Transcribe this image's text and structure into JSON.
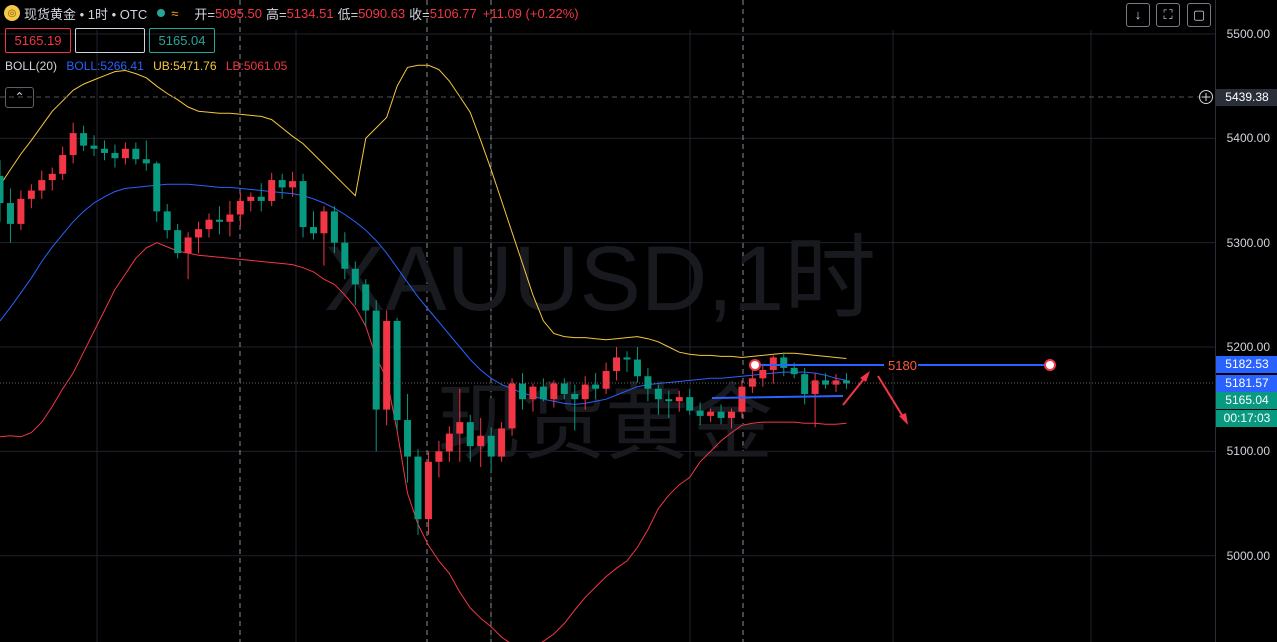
{
  "header": {
    "symbol": "现货黄金 • 1时 • OTC",
    "open_label": "开=",
    "open": "5095.50",
    "high_label": "高=",
    "high": "5134.51",
    "low_label": "低=",
    "low": "5090.63",
    "close_label": "收=",
    "close": "5106.77",
    "change": "+11.09 (+0.22%)",
    "wave_glyph": "≈"
  },
  "quote": {
    "bid": "5165.19",
    "mid": "",
    "ask": "5165.04"
  },
  "indicator": {
    "name": "BOLL(20)",
    "boll": "BOLL:5266.41",
    "ub": "UB:5471.76",
    "lb": "LB:5061.05"
  },
  "watermark": {
    "line1": "XAUUSD,1时",
    "line2": "现货黄金"
  },
  "toolbar": {
    "collapse_glyph": "⌃",
    "download_glyph": "↓",
    "fullscreen_glyph": "⛶",
    "screenshot_glyph": "▢"
  },
  "drawing": {
    "level_label": "5180"
  },
  "price_axis": {
    "crosshair_label": "5439.38",
    "labels": [
      {
        "text": "5182.53",
        "value": 5182.53,
        "color": "#2962ff"
      },
      {
        "text": "5181.57",
        "value": 5181.57,
        "color": "#2962ff"
      },
      {
        "text": "5165.04",
        "value": 5165.04,
        "color": "#089981"
      },
      {
        "text": "00:17:03",
        "value": 5145.5,
        "color": "#089981"
      }
    ]
  },
  "colors": {
    "up": "#f23645",
    "down": "#089981",
    "boll": "#2962ff",
    "ub": "#f5c83b",
    "lb": "#f23645"
  },
  "chart_data": {
    "type": "candlestick",
    "title": "",
    "y_ticks": [
      5000,
      5100,
      5200,
      5300,
      5400,
      5500
    ],
    "y_tick_labels": [
      "5000.00",
      "5100.00",
      "5200.00",
      "5300.00",
      "5400.00",
      "5500.00"
    ],
    "ylim": [
      4920,
      5520
    ],
    "grid": true,
    "candles": [
      [
        5364,
        5379,
        5320,
        5338
      ],
      [
        5338,
        5352,
        5300,
        5318
      ],
      [
        5318,
        5350,
        5312,
        5342
      ],
      [
        5342,
        5356,
        5333,
        5350
      ],
      [
        5350,
        5369,
        5342,
        5360
      ],
      [
        5360,
        5372,
        5350,
        5366
      ],
      [
        5366,
        5392,
        5360,
        5384
      ],
      [
        5384,
        5415,
        5376,
        5405
      ],
      [
        5405,
        5412,
        5388,
        5393
      ],
      [
        5393,
        5403,
        5383,
        5390
      ],
      [
        5390,
        5398,
        5379,
        5386
      ],
      [
        5386,
        5394,
        5372,
        5381
      ],
      [
        5381,
        5396,
        5375,
        5390
      ],
      [
        5390,
        5396,
        5375,
        5380
      ],
      [
        5380,
        5398,
        5369,
        5376
      ],
      [
        5376,
        5378,
        5320,
        5330
      ],
      [
        5330,
        5337,
        5304,
        5312
      ],
      [
        5312,
        5318,
        5285,
        5290
      ],
      [
        5290,
        5310,
        5265,
        5305
      ],
      [
        5305,
        5320,
        5290,
        5313
      ],
      [
        5313,
        5328,
        5305,
        5322
      ],
      [
        5322,
        5335,
        5308,
        5320
      ],
      [
        5320,
        5340,
        5306,
        5327
      ],
      [
        5327,
        5348,
        5315,
        5340
      ],
      [
        5340,
        5348,
        5330,
        5344
      ],
      [
        5344,
        5357,
        5330,
        5340
      ],
      [
        5340,
        5367,
        5335,
        5360
      ],
      [
        5360,
        5366,
        5342,
        5353
      ],
      [
        5353,
        5368,
        5344,
        5359
      ],
      [
        5359,
        5366,
        5305,
        5315
      ],
      [
        5315,
        5330,
        5303,
        5309
      ],
      [
        5309,
        5335,
        5278,
        5330
      ],
      [
        5330,
        5335,
        5290,
        5300
      ],
      [
        5300,
        5310,
        5265,
        5275
      ],
      [
        5275,
        5282,
        5240,
        5260
      ],
      [
        5260,
        5265,
        5220,
        5235
      ],
      [
        5235,
        5245,
        5100,
        5140
      ],
      [
        5140,
        5235,
        5125,
        5225
      ],
      [
        5225,
        5228,
        5120,
        5130
      ],
      [
        5130,
        5155,
        5070,
        5095
      ],
      [
        5095,
        5102,
        5020,
        5035
      ],
      [
        5035,
        5100,
        5020,
        5090
      ],
      [
        5090,
        5110,
        5075,
        5100
      ],
      [
        5100,
        5124,
        5090,
        5117
      ],
      [
        5117,
        5160,
        5090,
        5128
      ],
      [
        5128,
        5135,
        5090,
        5105
      ],
      [
        5105,
        5132,
        5085,
        5115
      ],
      [
        5115,
        5123,
        5080,
        5095
      ],
      [
        5095,
        5128,
        5090,
        5122
      ],
      [
        5122,
        5170,
        5115,
        5165
      ],
      [
        5165,
        5175,
        5140,
        5150
      ],
      [
        5150,
        5165,
        5138,
        5162
      ],
      [
        5162,
        5170,
        5148,
        5150
      ],
      [
        5150,
        5168,
        5142,
        5165
      ],
      [
        5165,
        5170,
        5150,
        5155
      ],
      [
        5155,
        5164,
        5120,
        5150
      ],
      [
        5150,
        5172,
        5140,
        5164
      ],
      [
        5164,
        5175,
        5150,
        5160
      ],
      [
        5160,
        5185,
        5155,
        5177
      ],
      [
        5177,
        5200,
        5168,
        5190
      ],
      [
        5190,
        5196,
        5176,
        5188
      ],
      [
        5188,
        5200,
        5166,
        5172
      ],
      [
        5172,
        5180,
        5148,
        5160
      ],
      [
        5160,
        5164,
        5135,
        5150
      ],
      [
        5150,
        5158,
        5132,
        5148
      ],
      [
        5148,
        5158,
        5138,
        5152
      ],
      [
        5152,
        5160,
        5135,
        5139
      ],
      [
        5139,
        5147,
        5125,
        5134
      ],
      [
        5134,
        5141,
        5128,
        5138
      ],
      [
        5138,
        5145,
        5126,
        5132
      ],
      [
        5132,
        5141,
        5122,
        5138
      ],
      [
        5138,
        5168,
        5132,
        5162
      ],
      [
        5162,
        5178,
        5156,
        5170
      ],
      [
        5170,
        5184,
        5162,
        5178
      ],
      [
        5178,
        5192,
        5165,
        5190
      ],
      [
        5190,
        5195,
        5172,
        5180
      ],
      [
        5180,
        5185,
        5170,
        5174
      ],
      [
        5174,
        5180,
        5145,
        5155
      ],
      [
        5155,
        5175,
        5123,
        5168
      ],
      [
        5168,
        5175,
        5160,
        5164
      ],
      [
        5164,
        5174,
        5157,
        5168
      ],
      [
        5168,
        5175,
        5160,
        5165
      ]
    ],
    "series": [
      {
        "name": "BOLL",
        "values": [
          5225,
          5238,
          5252,
          5266,
          5282,
          5296,
          5308,
          5320,
          5330,
          5338,
          5344,
          5349,
          5352,
          5353,
          5354,
          5355,
          5356,
          5356,
          5356,
          5355,
          5354,
          5353,
          5353,
          5352,
          5351,
          5350,
          5349,
          5348,
          5347,
          5345,
          5342,
          5338,
          5333,
          5327,
          5320,
          5312,
          5302,
          5290,
          5276,
          5262,
          5248,
          5236,
          5224,
          5212,
          5200,
          5188,
          5178,
          5170,
          5164,
          5160,
          5156,
          5153,
          5150,
          5148,
          5146,
          5145,
          5146,
          5148,
          5150,
          5154,
          5158,
          5162,
          5164,
          5165,
          5166,
          5167,
          5168,
          5169,
          5170,
          5170,
          5171,
          5172,
          5173,
          5174,
          5175,
          5176,
          5176,
          5176,
          5175,
          5173,
          5170,
          5168
        ]
      },
      {
        "name": "UB",
        "values": [
          5355,
          5370,
          5385,
          5398,
          5412,
          5426,
          5436,
          5446,
          5452,
          5456,
          5460,
          5464,
          5465,
          5462,
          5458,
          5450,
          5443,
          5437,
          5430,
          5426,
          5425,
          5424,
          5424,
          5423,
          5422,
          5421,
          5418,
          5410,
          5402,
          5395,
          5385,
          5375,
          5365,
          5355,
          5345,
          5400,
          5410,
          5420,
          5450,
          5468,
          5470,
          5470,
          5466,
          5455,
          5440,
          5425,
          5398,
          5370,
          5340,
          5310,
          5280,
          5250,
          5225,
          5213,
          5210,
          5209,
          5209,
          5208,
          5207,
          5208,
          5209,
          5210,
          5208,
          5205,
          5200,
          5195,
          5193,
          5192,
          5192,
          5191,
          5191,
          5190,
          5191,
          5192,
          5193,
          5194,
          5194,
          5193,
          5192,
          5191,
          5190,
          5189
        ]
      },
      {
        "name": "LB",
        "values": [
          5114,
          5115,
          5114,
          5118,
          5128,
          5143,
          5160,
          5175,
          5195,
          5215,
          5235,
          5255,
          5270,
          5285,
          5295,
          5300,
          5296,
          5292,
          5290,
          5288,
          5287,
          5286,
          5285,
          5284,
          5283,
          5282,
          5281,
          5280,
          5279,
          5276,
          5272,
          5265,
          5260,
          5250,
          5238,
          5220,
          5190,
          5170,
          5120,
          5060,
          5030,
          5010,
          4995,
          4983,
          4965,
          4950,
          4940,
          4932,
          4922,
          4915,
          4910,
          4912,
          4918,
          4925,
          4935,
          4948,
          4960,
          4970,
          4980,
          4988,
          4995,
          5008,
          5025,
          5045,
          5058,
          5068,
          5075,
          5090,
          5100,
          5110,
          5118,
          5125,
          5127,
          5128,
          5128,
          5128,
          5128,
          5127,
          5127,
          5126,
          5126,
          5127
        ]
      }
    ]
  }
}
